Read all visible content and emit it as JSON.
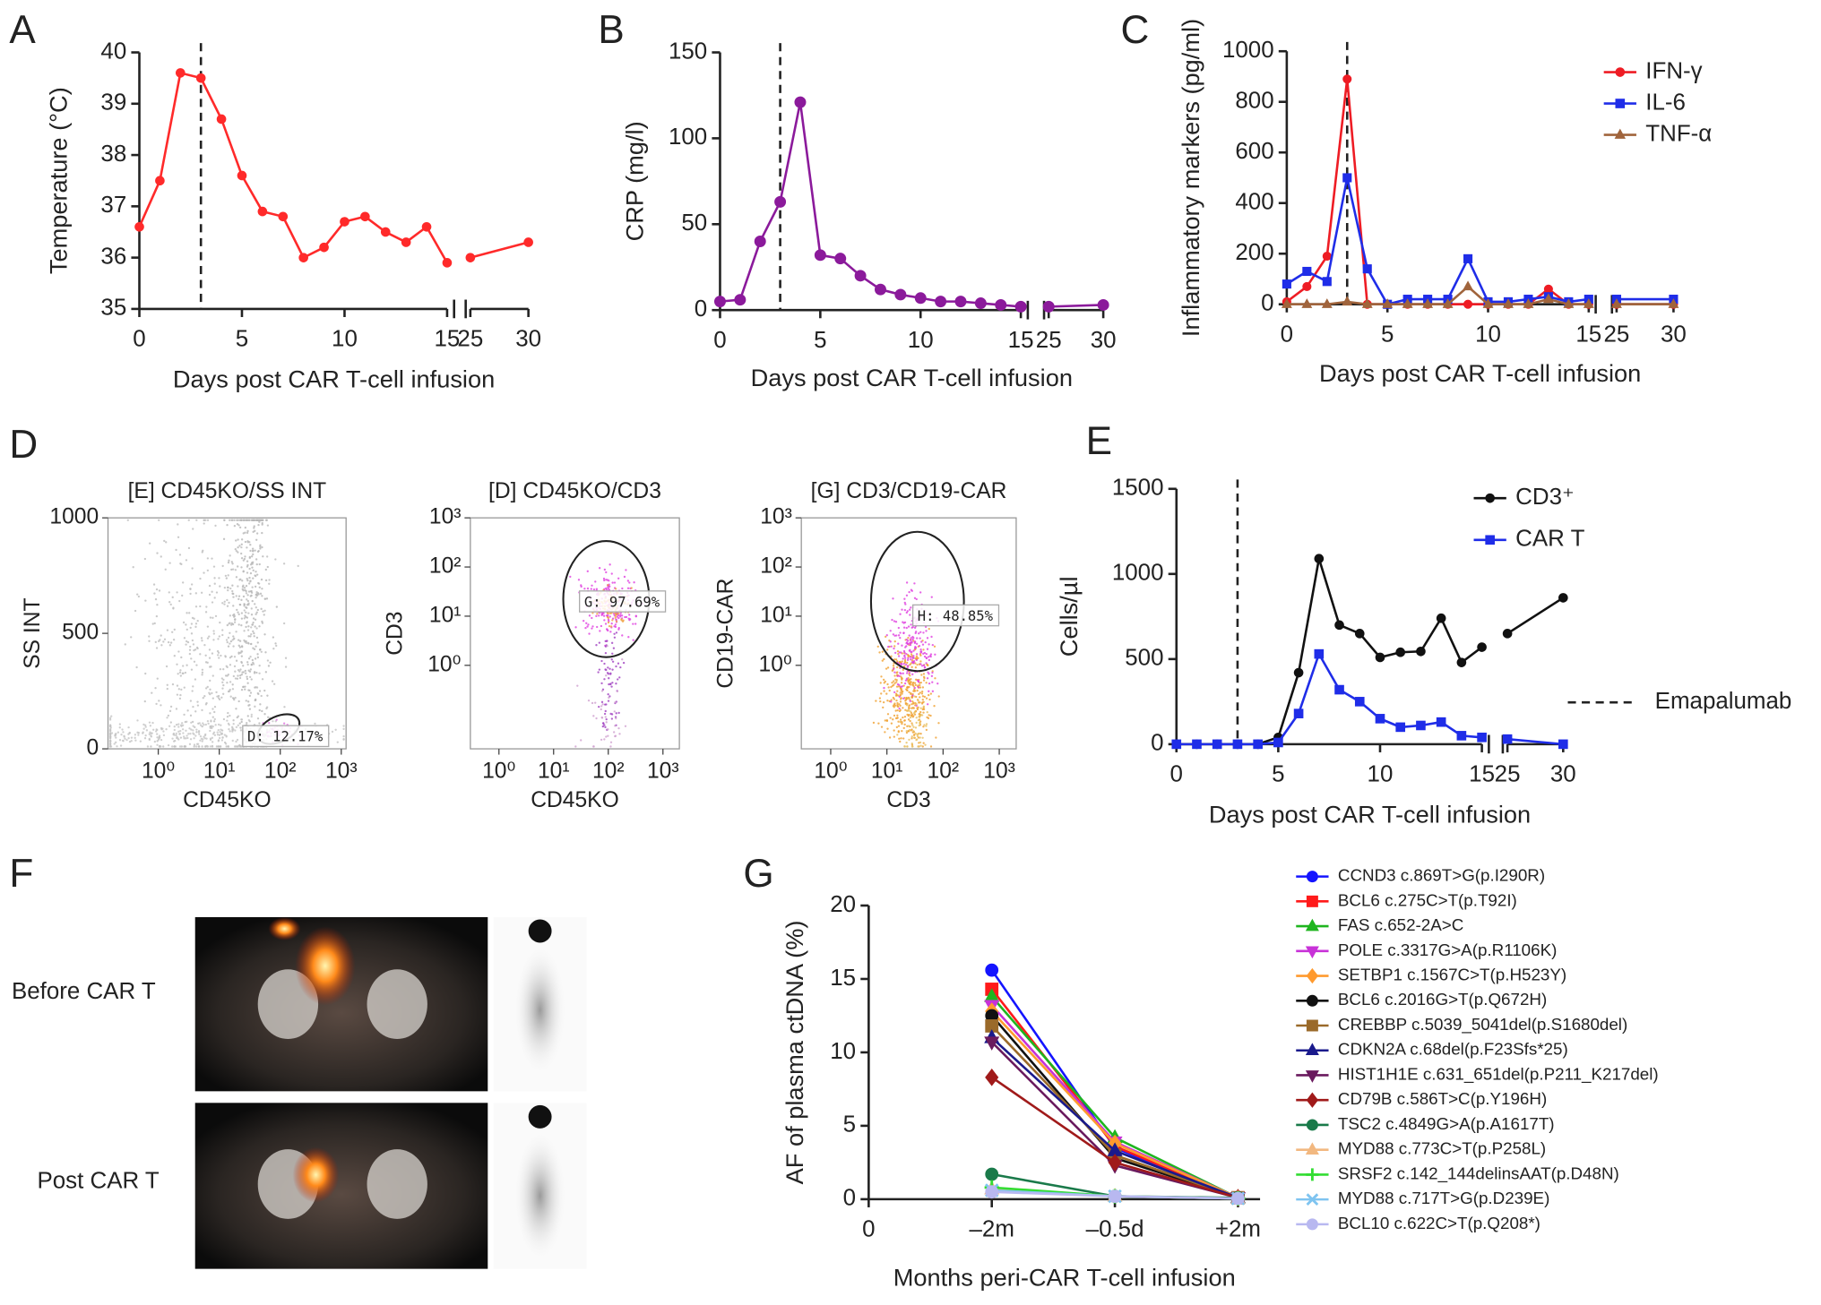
{
  "chart_data": [
    {
      "type": "line",
      "panel": "A",
      "x_label": "Days post CAR T-cell infusion",
      "y_label": "Temperature (°C)",
      "x": [
        0,
        1,
        2,
        3,
        4,
        5,
        6,
        7,
        8,
        9,
        10,
        11,
        12,
        13,
        14,
        15,
        25,
        30
      ],
      "values": [
        36.6,
        37.5,
        39.6,
        39.5,
        38.7,
        37.6,
        36.9,
        36.8,
        36.0,
        36.2,
        36.7,
        36.8,
        36.5,
        36.3,
        36.6,
        35.9,
        36.0,
        36.3
      ],
      "color": "#ff2a2a",
      "marker": "circle",
      "xlim": [
        0,
        30
      ],
      "xbreak": [
        15,
        25
      ],
      "xticks": [
        0,
        5,
        10,
        15,
        25,
        30
      ],
      "ylim": [
        35,
        40
      ],
      "yticks": [
        35,
        36,
        37,
        38,
        39,
        40
      ],
      "vline": 3
    },
    {
      "type": "line",
      "panel": "B",
      "x_label": "Days post CAR T-cell infusion",
      "y_label": "CRP (mg/l)",
      "x": [
        0,
        1,
        2,
        3,
        4,
        5,
        6,
        7,
        8,
        9,
        10,
        11,
        12,
        13,
        14,
        15,
        25,
        30
      ],
      "values": [
        5,
        6,
        40,
        63,
        121,
        32,
        30,
        20,
        12,
        9,
        7,
        5,
        5,
        4,
        3,
        2,
        2,
        3
      ],
      "color": "#8b1a9b",
      "marker": "circle",
      "xlim": [
        0,
        30
      ],
      "xbreak": [
        15,
        25
      ],
      "xticks": [
        0,
        5,
        10,
        15,
        25,
        30
      ],
      "ylim": [
        0,
        150
      ],
      "yticks": [
        0,
        50,
        100,
        150
      ],
      "vline": 3
    },
    {
      "type": "line",
      "panel": "C",
      "x_label": "Days post CAR T-cell infusion",
      "y_label": "Inflammatory markers (pg/ml)",
      "x": [
        0,
        1,
        2,
        3,
        4,
        5,
        6,
        7,
        8,
        9,
        10,
        11,
        12,
        13,
        14,
        15,
        25,
        30
      ],
      "series": [
        {
          "name": "IFN-γ",
          "color": "#ee1c24",
          "marker": "circle",
          "values": [
            10,
            70,
            190,
            890,
            0,
            0,
            0,
            0,
            0,
            0,
            0,
            0,
            0,
            60,
            0,
            0,
            0,
            0
          ]
        },
        {
          "name": "IL-6",
          "color": "#1f2de8",
          "marker": "square",
          "values": [
            80,
            130,
            90,
            500,
            140,
            0,
            20,
            20,
            20,
            180,
            10,
            10,
            20,
            30,
            10,
            20,
            20,
            20
          ]
        },
        {
          "name": "TNF-α",
          "color": "#a0643c",
          "marker": "triangle",
          "values": [
            0,
            0,
            0,
            10,
            0,
            0,
            0,
            0,
            0,
            70,
            0,
            0,
            0,
            20,
            0,
            0,
            0,
            0
          ]
        }
      ],
      "legend": "upper right",
      "xlim": [
        0,
        30
      ],
      "xbreak": [
        15,
        25
      ],
      "xticks": [
        0,
        5,
        10,
        15,
        25,
        30
      ],
      "ylim": [
        0,
        1000
      ],
      "yticks": [
        0,
        200,
        400,
        600,
        800,
        1000
      ],
      "vline": 3
    },
    {
      "type": "scatter",
      "panel": "D",
      "title": "[E] CD45KO/SS INT",
      "x_label": "CD45KO",
      "y_label": "SS INT",
      "gate_label": "D: 12.17%",
      "xscale": "log",
      "xlim": [
        0.15,
        1200
      ],
      "xticks": [
        {
          "value": 1,
          "label": "10⁰"
        },
        {
          "value": 10,
          "label": "10¹"
        },
        {
          "value": 100,
          "label": "10²"
        },
        {
          "value": 1000,
          "label": "10³"
        }
      ],
      "yscale": "linear",
      "ylim": [
        0,
        1000
      ],
      "yticks": [
        0,
        500,
        1000
      ]
    },
    {
      "type": "scatter",
      "title": "[D] CD45KO/CD3",
      "x_label": "CD45KO",
      "y_label": "CD3",
      "gate_label": "G: 97.69%",
      "xscale": "log",
      "xlim": [
        0.3,
        2000
      ],
      "xticks": [
        {
          "value": 1,
          "label": "10⁰"
        },
        {
          "value": 10,
          "label": "10¹"
        },
        {
          "value": 100,
          "label": "10²"
        },
        {
          "value": 1000,
          "label": "10³"
        }
      ],
      "yscale": "log",
      "ylim": [
        0.02,
        1000
      ],
      "yticks": [
        {
          "value": 1,
          "label": "10⁰"
        },
        {
          "value": 10,
          "label": "10¹"
        },
        {
          "value": 100,
          "label": "10²"
        },
        {
          "value": 1000,
          "label": "10³"
        }
      ]
    },
    {
      "type": "scatter",
      "title": "[G] CD3/CD19-CAR",
      "x_label": "CD3",
      "y_label": "CD19-CAR",
      "gate_label": "H: 48.85%",
      "xscale": "log",
      "xlim": [
        0.3,
        2000
      ],
      "xticks": [
        {
          "value": 1,
          "label": "10⁰"
        },
        {
          "value": 10,
          "label": "10¹"
        },
        {
          "value": 100,
          "label": "10²"
        },
        {
          "value": 1000,
          "label": "10³"
        }
      ],
      "yscale": "log",
      "ylim": [
        0.02,
        1000
      ],
      "yticks": [
        {
          "value": 1,
          "label": "10⁰"
        },
        {
          "value": 10,
          "label": "10¹"
        },
        {
          "value": 100,
          "label": "10²"
        },
        {
          "value": 1000,
          "label": "10³"
        }
      ]
    },
    {
      "type": "line",
      "panel": "E",
      "x_label": "Days post CAR T-cell infusion",
      "y_label": "Cells/µl",
      "x": [
        0,
        1,
        2,
        3,
        4,
        5,
        6,
        7,
        8,
        9,
        10,
        11,
        12,
        13,
        14,
        15,
        25,
        30
      ],
      "series": [
        {
          "name": "CD3⁺",
          "color": "#111111",
          "marker": "circle",
          "values": [
            0,
            0,
            0,
            0,
            0,
            40,
            420,
            1090,
            700,
            650,
            510,
            540,
            545,
            740,
            480,
            570,
            650,
            860
          ]
        },
        {
          "name": "CAR T",
          "color": "#1f2de8",
          "marker": "square",
          "values": [
            0,
            0,
            0,
            0,
            0,
            10,
            180,
            530,
            320,
            250,
            150,
            100,
            110,
            130,
            50,
            40,
            30,
            0
          ]
        }
      ],
      "legend": "upper right",
      "vline_label": "Emapalumab",
      "xlim": [
        0,
        30
      ],
      "xbreak": [
        15,
        25
      ],
      "xticks": [
        0,
        5,
        10,
        15,
        25,
        30
      ],
      "ylim": [
        0,
        1500
      ],
      "yticks": [
        0,
        500,
        1000,
        1500
      ],
      "vline": 3
    },
    {
      "type": "line",
      "panel": "G",
      "x_label": "Months peri-CAR T-cell infusion",
      "y_label": "AF of plasma ctDNA (%)",
      "categories": [
        "0",
        "–2m",
        "–0.5d",
        "+2m"
      ],
      "series": [
        {
          "name": "CCND3 c.869T>G(p.I290R)",
          "color": "#1414ff",
          "marker": "circle",
          "values": [
            null,
            15.6,
            3.5,
            0.1
          ]
        },
        {
          "name": "BCL6 c.275C>T(p.T92I)",
          "color": "#ff1a1a",
          "marker": "square",
          "values": [
            null,
            14.3,
            3.6,
            0.1
          ]
        },
        {
          "name": "FAS c.652-2A>C",
          "color": "#1fb51f",
          "marker": "triangle",
          "values": [
            null,
            13.8,
            4.2,
            0.1
          ]
        },
        {
          "name": "POLE c.3317G>A(p.R1106K)",
          "color": "#c832d8",
          "marker": "triangle-down",
          "values": [
            null,
            13.2,
            3.9,
            0.1
          ]
        },
        {
          "name": "SETBP1 c.1567C>T(p.H523Y)",
          "color": "#ff9a2e",
          "marker": "diamond",
          "values": [
            null,
            12.8,
            3.8,
            0.1
          ]
        },
        {
          "name": "BCL6 c.2016G>T(p.Q672H)",
          "color": "#111111",
          "marker": "circle",
          "values": [
            null,
            12.5,
            2.8,
            0.1
          ]
        },
        {
          "name": "CREBBP c.5039_5041del(p.S1680del)",
          "color": "#9a6a2a",
          "marker": "square",
          "values": [
            null,
            11.8,
            3.0,
            0.1
          ]
        },
        {
          "name": "CDKN2A c.68del(p.F23Sfs*25)",
          "color": "#1a1a8c",
          "marker": "triangle",
          "values": [
            null,
            11.0,
            3.3,
            0.1
          ]
        },
        {
          "name": "HIST1H1E c.631_651del(p.P211_K217del)",
          "color": "#6a1a5e",
          "marker": "triangle-down",
          "values": [
            null,
            10.7,
            2.3,
            0.1
          ]
        },
        {
          "name": "CD79B c.586T>C(p.Y196H)",
          "color": "#a01a1a",
          "marker": "diamond",
          "values": [
            null,
            8.3,
            2.5,
            0.1
          ]
        },
        {
          "name": "TSC2 c.4849G>A(p.A1617T)",
          "color": "#1a7a4a",
          "marker": "circle",
          "values": [
            null,
            1.7,
            0.2,
            0.1
          ]
        },
        {
          "name": "MYD88 c.773C>T(p.P258L)",
          "color": "#f2b880",
          "marker": "triangle",
          "values": [
            null,
            0.7,
            0.2,
            0.05
          ]
        },
        {
          "name": "SRSF2 c.142_144delinsAAT(p.D48N)",
          "color": "#33dd33",
          "marker": "plus",
          "values": [
            null,
            0.8,
            0.2,
            0.05
          ]
        },
        {
          "name": "MYD88 c.717T>G(p.D239E)",
          "color": "#7fc4f0",
          "marker": "cross",
          "values": [
            null,
            0.6,
            0.2,
            0.05
          ]
        },
        {
          "name": "BCL10 c.622C>T(p.Q208*)",
          "color": "#b8b8f0",
          "marker": "circle",
          "values": [
            null,
            0.5,
            0.2,
            0.05
          ]
        }
      ],
      "legend": "right",
      "ylim": [
        0,
        20
      ],
      "yticks": [
        0,
        5,
        10,
        15,
        20
      ]
    }
  ],
  "panel_F": {
    "label": "F",
    "images": [
      {
        "label": "Before CAR T"
      },
      {
        "label": "Post CAR T"
      }
    ]
  }
}
